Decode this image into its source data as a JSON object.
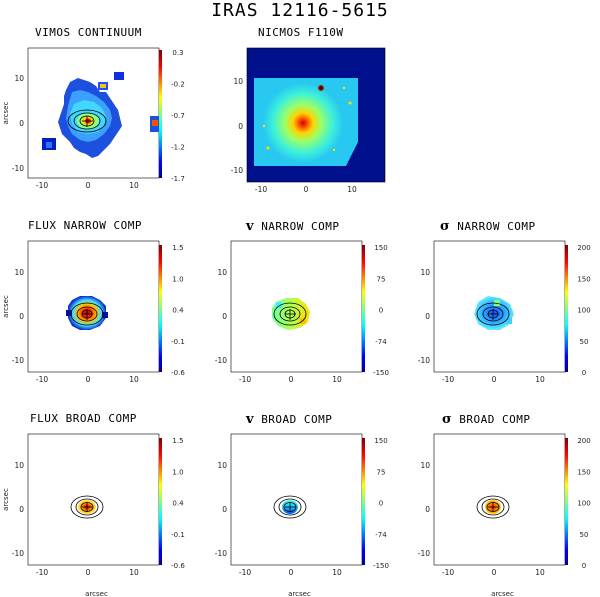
{
  "title": "IRAS 12116-5615",
  "panels": [
    {
      "id": "vimos-continuum",
      "title": "VIMOS CONTINUUM",
      "xlabel": "",
      "ylabel": "arcsec",
      "xticks": [
        "-10",
        "0",
        "10"
      ],
      "yticks": [
        "10",
        "0",
        "-10"
      ],
      "colorbar_ticks": [
        "0.3",
        "-0.2",
        "-0.7",
        "-1.2",
        "-1.7"
      ]
    },
    {
      "id": "nicmos-f110w",
      "title": "NICMOS F110W",
      "xlabel": "",
      "ylabel": "",
      "xticks": [
        "-10",
        "0",
        "10"
      ],
      "yticks": [
        "10",
        "0",
        "-10"
      ],
      "colorbar_ticks": []
    },
    {
      "id": "flux-narrow",
      "title": "FLUX NARROW COMP",
      "xlabel": "",
      "ylabel": "arcsec",
      "xticks": [
        "-10",
        "0",
        "10"
      ],
      "yticks": [
        "10",
        "0",
        "-10"
      ],
      "colorbar_ticks": [
        "1.5",
        "1.0",
        "0.4",
        "-0.1",
        "-0.6"
      ]
    },
    {
      "id": "v-narrow",
      "title_symbol": "v",
      "title": "NARROW COMP",
      "xlabel": "",
      "ylabel": "",
      "xticks": [
        "-10",
        "0",
        "10"
      ],
      "yticks": [
        "10",
        "0",
        "-10"
      ],
      "colorbar_ticks": [
        "150",
        "75",
        "0",
        "-74",
        "-150"
      ]
    },
    {
      "id": "sigma-narrow",
      "title_symbol": "σ",
      "title": "NARROW COMP",
      "xlabel": "",
      "ylabel": "",
      "xticks": [
        "-10",
        "0",
        "10"
      ],
      "yticks": [
        "10",
        "0",
        "-10"
      ],
      "colorbar_ticks": [
        "200",
        "150",
        "100",
        "50",
        "0"
      ]
    },
    {
      "id": "flux-broad",
      "title": "FLUX BROAD COMP",
      "xlabel": "arcsec",
      "ylabel": "arcsec",
      "xticks": [
        "-10",
        "0",
        "10"
      ],
      "yticks": [
        "10",
        "0",
        "-10"
      ],
      "colorbar_ticks": [
        "1.5",
        "1.0",
        "0.4",
        "-0.1",
        "-0.6"
      ]
    },
    {
      "id": "v-broad",
      "title_symbol": "v",
      "title": "BROAD COMP",
      "xlabel": "arcsec",
      "ylabel": "",
      "xticks": [
        "-10",
        "0",
        "10"
      ],
      "yticks": [
        "10",
        "0",
        "-10"
      ],
      "colorbar_ticks": [
        "150",
        "75",
        "0",
        "-74",
        "-150"
      ]
    },
    {
      "id": "sigma-broad",
      "title_symbol": "σ",
      "title": "BROAD COMP",
      "xlabel": "arcsec",
      "ylabel": "",
      "xticks": [
        "-10",
        "0",
        "10"
      ],
      "yticks": [
        "10",
        "0",
        "-10"
      ],
      "colorbar_ticks": [
        "200",
        "150",
        "100",
        "50",
        "0"
      ]
    }
  ],
  "colors": {
    "map_background": "#1e3cc8",
    "nicmos_frame": "#000f8c",
    "contour": "#000000"
  }
}
